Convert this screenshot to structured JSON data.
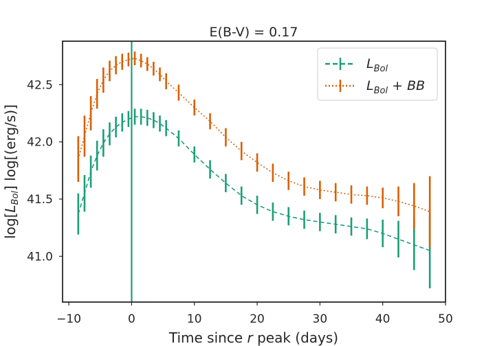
{
  "chart_data": {
    "type": "line",
    "title": "E(B-V) = 0.17",
    "xlabel": "Time since r peak (days)",
    "ylabel": "log[L_Bol] log[(erg/s)]",
    "xlim": [
      -11,
      50
    ],
    "ylim": [
      40.6,
      42.88
    ],
    "xticks": [
      "−10",
      "0",
      "10",
      "20",
      "30",
      "40",
      "50"
    ],
    "xtick_values": [
      -10,
      0,
      10,
      20,
      30,
      40,
      50
    ],
    "yticks": [
      "41.0",
      "41.5",
      "42.0",
      "42.5"
    ],
    "ytick_values": [
      41.0,
      41.5,
      42.0,
      42.5
    ],
    "grid": false,
    "legend_position": "top-right",
    "vline": {
      "x": 0,
      "color": "#1b9e77"
    },
    "series": [
      {
        "name": "L_Bol",
        "legend_label": "L",
        "legend_sub": "Bol",
        "color": "#1b9e77",
        "linestyle": "dashed",
        "x": [
          -8.5,
          -7.5,
          -6.5,
          -5.5,
          -4.5,
          -3.5,
          -2.5,
          -1.5,
          -0.5,
          0.5,
          1.5,
          2.5,
          3.5,
          4.5,
          5.5,
          7.5,
          10,
          12.5,
          15,
          17.5,
          20,
          22.5,
          25,
          27.5,
          30,
          32.5,
          35,
          37.5,
          40,
          42.5,
          45,
          47.5
        ],
        "y": [
          41.37,
          41.55,
          41.74,
          41.88,
          41.99,
          42.07,
          42.13,
          42.17,
          42.2,
          42.22,
          42.22,
          42.21,
          42.19,
          42.16,
          42.12,
          42.03,
          41.89,
          41.76,
          41.64,
          41.53,
          41.45,
          41.39,
          41.35,
          41.32,
          41.3,
          41.28,
          41.26,
          41.24,
          41.2,
          41.15,
          41.1,
          41.05
        ],
        "err": [
          0.18,
          0.16,
          0.14,
          0.13,
          0.12,
          0.1,
          0.09,
          0.08,
          0.07,
          0.07,
          0.07,
          0.07,
          0.07,
          0.07,
          0.07,
          0.07,
          0.07,
          0.08,
          0.08,
          0.08,
          0.08,
          0.08,
          0.08,
          0.08,
          0.08,
          0.08,
          0.08,
          0.09,
          0.12,
          0.16,
          0.22,
          0.33
        ]
      },
      {
        "name": "L_Bol + BB",
        "legend_label": "L",
        "legend_sub": "Bol",
        "legend_suffix": " + BB",
        "color": "#d95f02",
        "linestyle": "dotted",
        "x": [
          -8.5,
          -7.5,
          -6.5,
          -5.5,
          -4.5,
          -3.5,
          -2.5,
          -1.5,
          -0.5,
          0.5,
          1.5,
          2.5,
          3.5,
          4.5,
          5.5,
          7.5,
          10,
          12.5,
          15,
          17.5,
          20,
          22.5,
          25,
          27.5,
          30,
          32.5,
          35,
          37.5,
          40,
          42.5,
          45,
          47.5
        ],
        "y": [
          41.85,
          42.05,
          42.25,
          42.42,
          42.54,
          42.62,
          42.67,
          42.7,
          42.72,
          42.73,
          42.71,
          42.68,
          42.64,
          42.59,
          42.53,
          42.43,
          42.3,
          42.18,
          42.04,
          41.92,
          41.82,
          41.73,
          41.66,
          41.61,
          41.58,
          41.56,
          41.54,
          41.53,
          41.51,
          41.48,
          41.44,
          41.39
        ],
        "err": [
          0.2,
          0.18,
          0.15,
          0.13,
          0.11,
          0.09,
          0.08,
          0.07,
          0.06,
          0.06,
          0.06,
          0.06,
          0.06,
          0.06,
          0.07,
          0.07,
          0.07,
          0.07,
          0.08,
          0.08,
          0.08,
          0.08,
          0.08,
          0.08,
          0.08,
          0.08,
          0.08,
          0.08,
          0.09,
          0.13,
          0.2,
          0.31
        ]
      }
    ]
  }
}
